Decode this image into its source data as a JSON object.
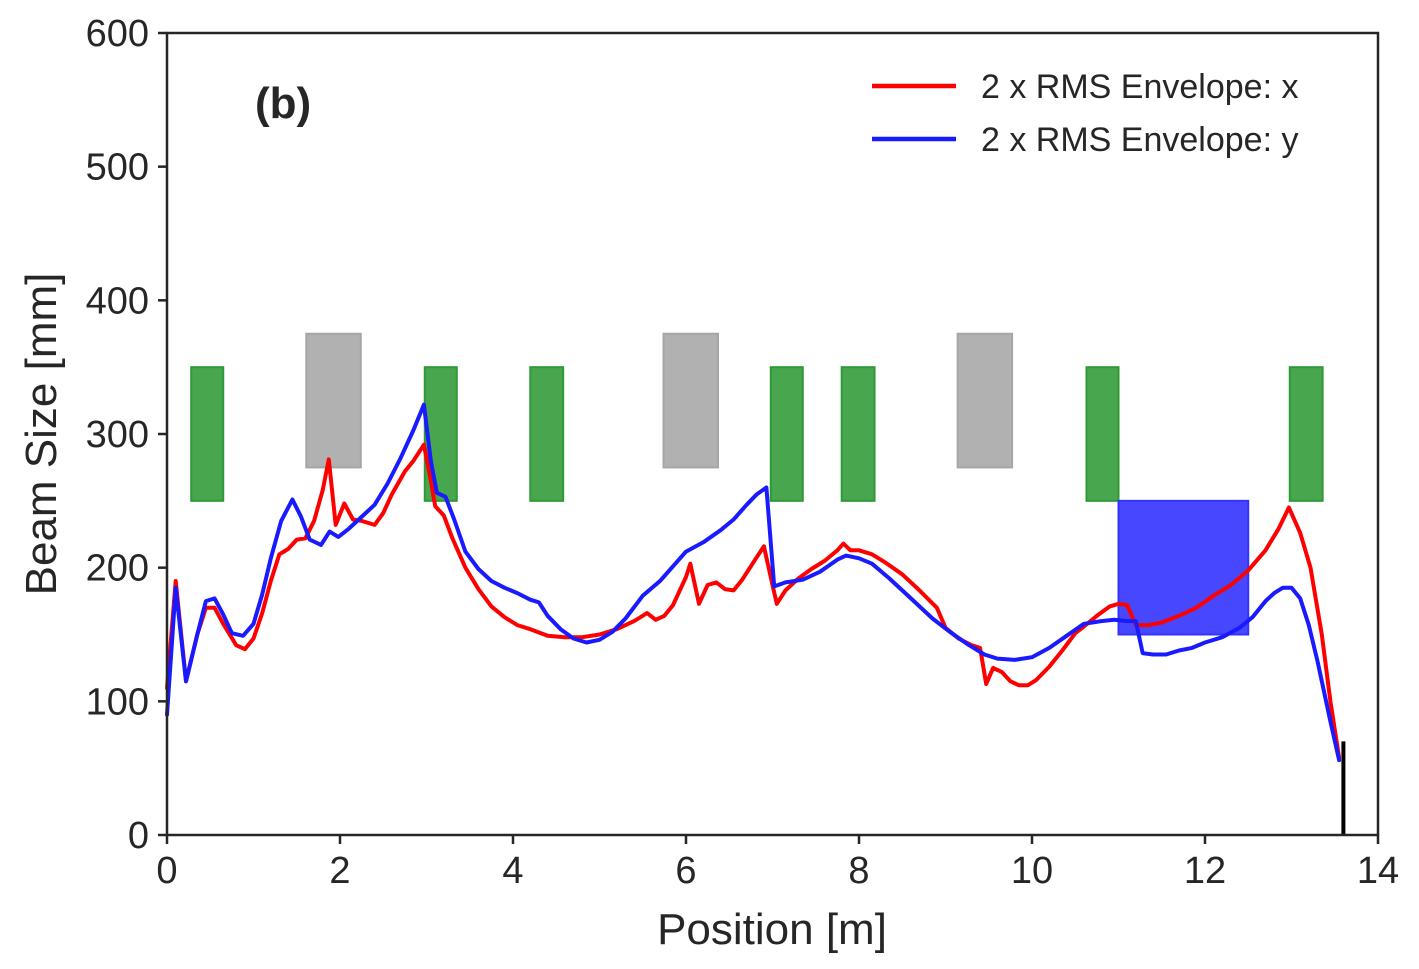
{
  "chart_data": {
    "type": "line",
    "panel_label": "(b)",
    "xlabel": "Position [m]",
    "ylabel": "Beam Size [mm]",
    "xlim": [
      0,
      14
    ],
    "ylim": [
      0,
      600
    ],
    "xticks": [
      0,
      2,
      4,
      6,
      8,
      10,
      12,
      14
    ],
    "yticks": [
      0,
      100,
      200,
      300,
      400,
      500,
      600
    ],
    "legend_position": "top-right",
    "series": [
      {
        "name": "2 x RMS Envelope: x",
        "color": "#ff0000",
        "points": [
          [
            0.0,
            110
          ],
          [
            0.1,
            190
          ],
          [
            0.22,
            115
          ],
          [
            0.35,
            150
          ],
          [
            0.45,
            170
          ],
          [
            0.55,
            170
          ],
          [
            0.65,
            158
          ],
          [
            0.8,
            142
          ],
          [
            0.9,
            139
          ],
          [
            1.0,
            147
          ],
          [
            1.1,
            166
          ],
          [
            1.2,
            190
          ],
          [
            1.3,
            210
          ],
          [
            1.4,
            214
          ],
          [
            1.5,
            221
          ],
          [
            1.6,
            222
          ],
          [
            1.7,
            235
          ],
          [
            1.8,
            258
          ],
          [
            1.87,
            281
          ],
          [
            1.95,
            232
          ],
          [
            2.05,
            248
          ],
          [
            2.15,
            236
          ],
          [
            2.25,
            235
          ],
          [
            2.4,
            232
          ],
          [
            2.5,
            241
          ],
          [
            2.6,
            255
          ],
          [
            2.75,
            272
          ],
          [
            2.85,
            280
          ],
          [
            2.97,
            292
          ],
          [
            3.05,
            265
          ],
          [
            3.1,
            246
          ],
          [
            3.2,
            239
          ],
          [
            3.3,
            222
          ],
          [
            3.45,
            200
          ],
          [
            3.6,
            184
          ],
          [
            3.75,
            171
          ],
          [
            3.9,
            163
          ],
          [
            4.05,
            157
          ],
          [
            4.2,
            154
          ],
          [
            4.4,
            149
          ],
          [
            4.6,
            148
          ],
          [
            4.8,
            148
          ],
          [
            5.0,
            150
          ],
          [
            5.2,
            154
          ],
          [
            5.4,
            160
          ],
          [
            5.55,
            166
          ],
          [
            5.65,
            161
          ],
          [
            5.75,
            164
          ],
          [
            5.85,
            172
          ],
          [
            6.0,
            193
          ],
          [
            6.05,
            203
          ],
          [
            6.15,
            173
          ],
          [
            6.25,
            187
          ],
          [
            6.35,
            189
          ],
          [
            6.45,
            184
          ],
          [
            6.55,
            183
          ],
          [
            6.65,
            191
          ],
          [
            6.8,
            206
          ],
          [
            6.9,
            216
          ],
          [
            7.0,
            187
          ],
          [
            7.05,
            173
          ],
          [
            7.15,
            183
          ],
          [
            7.3,
            192
          ],
          [
            7.45,
            199
          ],
          [
            7.6,
            205
          ],
          [
            7.75,
            213
          ],
          [
            7.82,
            218
          ],
          [
            7.9,
            213
          ],
          [
            8.0,
            213
          ],
          [
            8.15,
            210
          ],
          [
            8.3,
            204
          ],
          [
            8.5,
            195
          ],
          [
            8.7,
            183
          ],
          [
            8.9,
            170
          ],
          [
            9.0,
            155
          ],
          [
            9.15,
            147
          ],
          [
            9.3,
            142
          ],
          [
            9.4,
            140
          ],
          [
            9.47,
            113
          ],
          [
            9.55,
            125
          ],
          [
            9.65,
            122
          ],
          [
            9.75,
            115
          ],
          [
            9.85,
            112
          ],
          [
            9.95,
            112
          ],
          [
            10.05,
            116
          ],
          [
            10.2,
            126
          ],
          [
            10.35,
            138
          ],
          [
            10.5,
            151
          ],
          [
            10.6,
            156
          ],
          [
            10.75,
            164
          ],
          [
            10.9,
            171
          ],
          [
            11.0,
            173
          ],
          [
            11.1,
            172
          ],
          [
            11.2,
            157
          ],
          [
            11.35,
            157
          ],
          [
            11.5,
            159
          ],
          [
            11.7,
            164
          ],
          [
            11.9,
            170
          ],
          [
            12.1,
            179
          ],
          [
            12.3,
            187
          ],
          [
            12.5,
            198
          ],
          [
            12.7,
            213
          ],
          [
            12.85,
            229
          ],
          [
            12.97,
            245
          ],
          [
            13.1,
            226
          ],
          [
            13.22,
            200
          ],
          [
            13.35,
            150
          ],
          [
            13.45,
            100
          ],
          [
            13.55,
            58
          ]
        ]
      },
      {
        "name": "2 x RMS Envelope: y",
        "color": "#1a1aff",
        "points": [
          [
            0.0,
            90
          ],
          [
            0.1,
            185
          ],
          [
            0.22,
            115
          ],
          [
            0.35,
            150
          ],
          [
            0.45,
            175
          ],
          [
            0.55,
            177
          ],
          [
            0.65,
            165
          ],
          [
            0.75,
            151
          ],
          [
            0.88,
            149
          ],
          [
            1.0,
            158
          ],
          [
            1.1,
            180
          ],
          [
            1.2,
            207
          ],
          [
            1.32,
            235
          ],
          [
            1.45,
            251
          ],
          [
            1.55,
            238
          ],
          [
            1.65,
            221
          ],
          [
            1.78,
            217
          ],
          [
            1.88,
            227
          ],
          [
            1.98,
            223
          ],
          [
            2.1,
            229
          ],
          [
            2.25,
            238
          ],
          [
            2.4,
            247
          ],
          [
            2.55,
            263
          ],
          [
            2.7,
            282
          ],
          [
            2.85,
            303
          ],
          [
            2.97,
            322
          ],
          [
            3.05,
            280
          ],
          [
            3.12,
            256
          ],
          [
            3.22,
            253
          ],
          [
            3.32,
            236
          ],
          [
            3.45,
            212
          ],
          [
            3.6,
            199
          ],
          [
            3.75,
            190
          ],
          [
            3.9,
            185
          ],
          [
            4.05,
            181
          ],
          [
            4.2,
            176
          ],
          [
            4.3,
            174
          ],
          [
            4.4,
            164
          ],
          [
            4.55,
            154
          ],
          [
            4.7,
            147
          ],
          [
            4.85,
            144
          ],
          [
            5.0,
            146
          ],
          [
            5.15,
            152
          ],
          [
            5.3,
            162
          ],
          [
            5.5,
            179
          ],
          [
            5.7,
            190
          ],
          [
            5.85,
            201
          ],
          [
            6.0,
            212
          ],
          [
            6.2,
            219
          ],
          [
            6.4,
            228
          ],
          [
            6.55,
            236
          ],
          [
            6.7,
            247
          ],
          [
            6.82,
            255
          ],
          [
            6.93,
            260
          ],
          [
            7.02,
            186
          ],
          [
            7.15,
            189
          ],
          [
            7.35,
            191
          ],
          [
            7.55,
            197
          ],
          [
            7.75,
            206
          ],
          [
            7.85,
            209
          ],
          [
            8.0,
            207
          ],
          [
            8.15,
            203
          ],
          [
            8.35,
            192
          ],
          [
            8.6,
            177
          ],
          [
            8.85,
            162
          ],
          [
            9.05,
            152
          ],
          [
            9.25,
            143
          ],
          [
            9.45,
            135
          ],
          [
            9.6,
            132
          ],
          [
            9.8,
            131
          ],
          [
            10.0,
            133
          ],
          [
            10.2,
            140
          ],
          [
            10.4,
            149
          ],
          [
            10.6,
            158
          ],
          [
            10.8,
            160
          ],
          [
            10.95,
            161
          ],
          [
            11.1,
            160
          ],
          [
            11.2,
            160
          ],
          [
            11.28,
            136
          ],
          [
            11.4,
            135
          ],
          [
            11.55,
            135
          ],
          [
            11.7,
            138
          ],
          [
            11.85,
            140
          ],
          [
            12.0,
            144
          ],
          [
            12.2,
            148
          ],
          [
            12.4,
            155
          ],
          [
            12.55,
            163
          ],
          [
            12.7,
            175
          ],
          [
            12.8,
            181
          ],
          [
            12.9,
            185
          ],
          [
            13.0,
            185
          ],
          [
            13.1,
            177
          ],
          [
            13.2,
            157
          ],
          [
            13.3,
            130
          ],
          [
            13.45,
            85
          ],
          [
            13.55,
            56
          ]
        ]
      }
    ],
    "elements": [
      {
        "kind": "focusing",
        "color": "#2e9a36",
        "x0": 0.28,
        "x1": 0.65,
        "y0": 250,
        "y1": 350
      },
      {
        "kind": "dipole",
        "color": "#a6a6a6",
        "x0": 1.61,
        "x1": 2.24,
        "y0": 275,
        "y1": 375
      },
      {
        "kind": "focusing",
        "color": "#2e9a36",
        "x0": 2.98,
        "x1": 3.35,
        "y0": 250,
        "y1": 350
      },
      {
        "kind": "focusing",
        "color": "#2e9a36",
        "x0": 4.2,
        "x1": 4.58,
        "y0": 250,
        "y1": 350
      },
      {
        "kind": "dipole",
        "color": "#a6a6a6",
        "x0": 5.74,
        "x1": 6.37,
        "y0": 275,
        "y1": 375
      },
      {
        "kind": "focusing",
        "color": "#2e9a36",
        "x0": 6.98,
        "x1": 7.35,
        "y0": 250,
        "y1": 350
      },
      {
        "kind": "focusing",
        "color": "#2e9a36",
        "x0": 7.8,
        "x1": 8.18,
        "y0": 250,
        "y1": 350
      },
      {
        "kind": "dipole",
        "color": "#a6a6a6",
        "x0": 9.14,
        "x1": 9.77,
        "y0": 275,
        "y1": 375
      },
      {
        "kind": "focusing",
        "color": "#2e9a36",
        "x0": 10.63,
        "x1": 11.0,
        "y0": 250,
        "y1": 350
      },
      {
        "kind": "block",
        "color": "#3333ff",
        "x0": 11.0,
        "x1": 12.5,
        "y0": 150,
        "y1": 250
      },
      {
        "kind": "focusing",
        "color": "#2e9a36",
        "x0": 12.98,
        "x1": 13.36,
        "y0": 250,
        "y1": 350
      }
    ],
    "end_marker": {
      "x": 13.6,
      "y0": 0,
      "y1": 70,
      "color": "#000000"
    }
  }
}
